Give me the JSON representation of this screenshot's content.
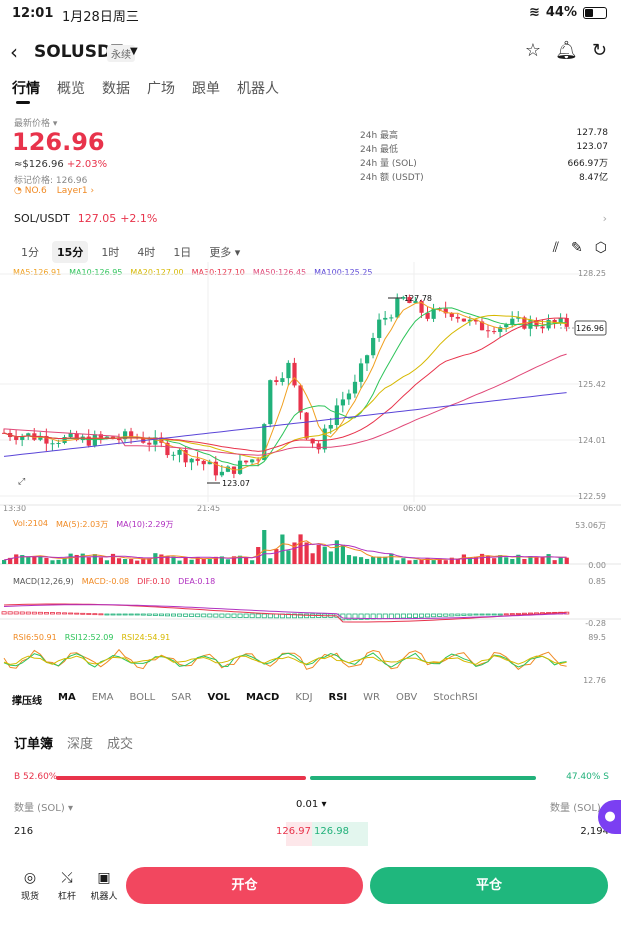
{
  "status": {
    "time": "12:01",
    "date": "1月28日周三",
    "battery": "44%",
    "battery_level": 0.44
  },
  "header": {
    "symbol": "SOLUSDT",
    "type_tag": "永续"
  },
  "nav_tabs": [
    "行情",
    "概览",
    "数据",
    "广场",
    "跟单",
    "机器人"
  ],
  "ticker": {
    "latest_label": "最新价格 ▾",
    "price": "126.96",
    "usd_price": "≈$126.96",
    "change_pct": "+2.03%",
    "mark_price": "标记价格: 126.96",
    "rank": "NO.6",
    "layer": "Layer1 ›",
    "stats": [
      {
        "label": "24h  最高",
        "value": "127.78"
      },
      {
        "label": "24h  最低",
        "value": "123.07"
      },
      {
        "label": "24h  量 (SOL)",
        "value": "666.97万"
      },
      {
        "label": "24h  额 (USDT)",
        "value": "8.47亿"
      }
    ]
  },
  "spot_pair": {
    "name": "SOL/USDT",
    "price": "127.05",
    "change": "+2.1%"
  },
  "intervals": [
    "1分",
    "15分",
    "1时",
    "4时",
    "1日",
    "更多 ▾"
  ],
  "ma_legend": [
    {
      "text": "MA5:126.91",
      "color": "#f0a020"
    },
    {
      "text": "MA10:126.95",
      "color": "#2ec45a"
    },
    {
      "text": "MA20:127.00",
      "color": "#d6b800"
    },
    {
      "text": "MA30:127.10",
      "color": "#e8334b"
    },
    {
      "text": "MA50:126.45",
      "color": "#e04878"
    },
    {
      "text": "MA100:125.25",
      "color": "#5a45d8"
    }
  ],
  "chart_axis": {
    "y_ticks": [
      "128.25",
      "125.42",
      "124.01",
      "122.59"
    ],
    "x_ticks": [
      "13:30",
      "21:45",
      "06:00"
    ],
    "current_price_tag": "126.96",
    "high_label": "127.78",
    "low_label": "123.07"
  },
  "vol_legend": [
    {
      "text": "Vol:2104",
      "color": "#f08a24"
    },
    {
      "text": "MA(5):2.03万",
      "color": "#f08a24"
    },
    {
      "text": "MA(10):2.29万",
      "color": "#b030c0"
    }
  ],
  "vol_axis": [
    "53.06万",
    "0.00"
  ],
  "macd_legend": [
    {
      "text": "MACD(12,26,9)",
      "color": "#555555"
    },
    {
      "text": "MACD:-0.08",
      "color": "#f08a24"
    },
    {
      "text": "DIF:0.10",
      "color": "#e8334b"
    },
    {
      "text": "DEA:0.18",
      "color": "#b030c0"
    }
  ],
  "macd_axis": [
    "0.85",
    "-0.28"
  ],
  "rsi_legend": [
    {
      "text": "RSI6:50.91",
      "color": "#f08a24"
    },
    {
      "text": "RSI12:52.09",
      "color": "#2ec45a"
    },
    {
      "text": "RSI24:54.91",
      "color": "#d6b800"
    }
  ],
  "rsi_axis": [
    "89.5",
    "12.76"
  ],
  "indicator_tabs": [
    {
      "label": "撑压线",
      "on": true
    },
    {
      "label": "MA",
      "on": true
    },
    {
      "label": "EMA",
      "on": false
    },
    {
      "label": "BOLL",
      "on": false
    },
    {
      "label": "SAR",
      "on": false
    },
    {
      "label": "VOL",
      "on": true
    },
    {
      "label": "MACD",
      "on": true
    },
    {
      "label": "KDJ",
      "on": false
    },
    {
      "label": "RSI",
      "on": true
    },
    {
      "label": "WR",
      "on": false
    },
    {
      "label": "OBV",
      "on": false
    },
    {
      "label": "StochRSI",
      "on": false
    }
  ],
  "orderbook": {
    "tabs": [
      "订单簿",
      "深度",
      "成交"
    ],
    "buy_ratio": "B 52.60%",
    "sell_ratio": "47.40% S",
    "buy_fraction": 0.526,
    "col_left": "数量 (SOL) ▾",
    "precision": "0.01 ▾",
    "col_right": "数量 (SOL) ▾",
    "bid_qty": "216",
    "bid_price": "126.97",
    "ask_price": "126.98",
    "ask_qty": "2,194"
  },
  "bottom": {
    "items": [
      {
        "label": "现货",
        "icon": "spot-icon"
      },
      {
        "label": "杠杆",
        "icon": "leverage-icon"
      },
      {
        "label": "机器人",
        "icon": "robot-icon"
      }
    ],
    "open_label": "开仓",
    "close_label": "平仓"
  },
  "colors": {
    "up": "#e8334b",
    "down": "#21b17a",
    "accent": "#7b3ff2"
  }
}
